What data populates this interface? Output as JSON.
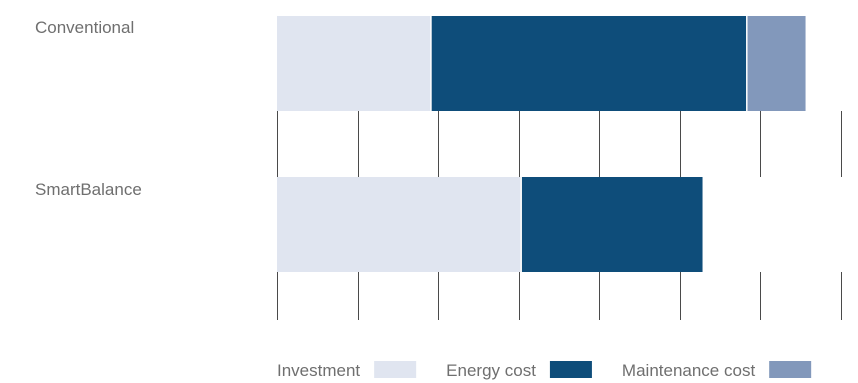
{
  "chart_data": {
    "type": "bar",
    "orientation": "horizontal",
    "stacked": true,
    "categories": [
      "Conventional",
      "SmartBalance"
    ],
    "series": [
      {
        "name": "Investment",
        "values": [
          19.2,
          30.4
        ],
        "color": "#e0e5f0"
      },
      {
        "name": "Energy cost",
        "values": [
          39.2,
          22.6
        ],
        "color": "#0e4d7a"
      },
      {
        "name": "Maintenance cost",
        "values": [
          7.2,
          0
        ],
        "color": "#8298bb"
      }
    ],
    "xlim": [
      0,
      70
    ],
    "x_ticks": [
      0,
      10,
      20,
      30,
      40,
      50,
      60,
      70
    ],
    "tick_labels_shown": false,
    "grid": "vertical",
    "legend_position": "bottom-right",
    "title": "",
    "xlabel": "",
    "ylabel": ""
  }
}
